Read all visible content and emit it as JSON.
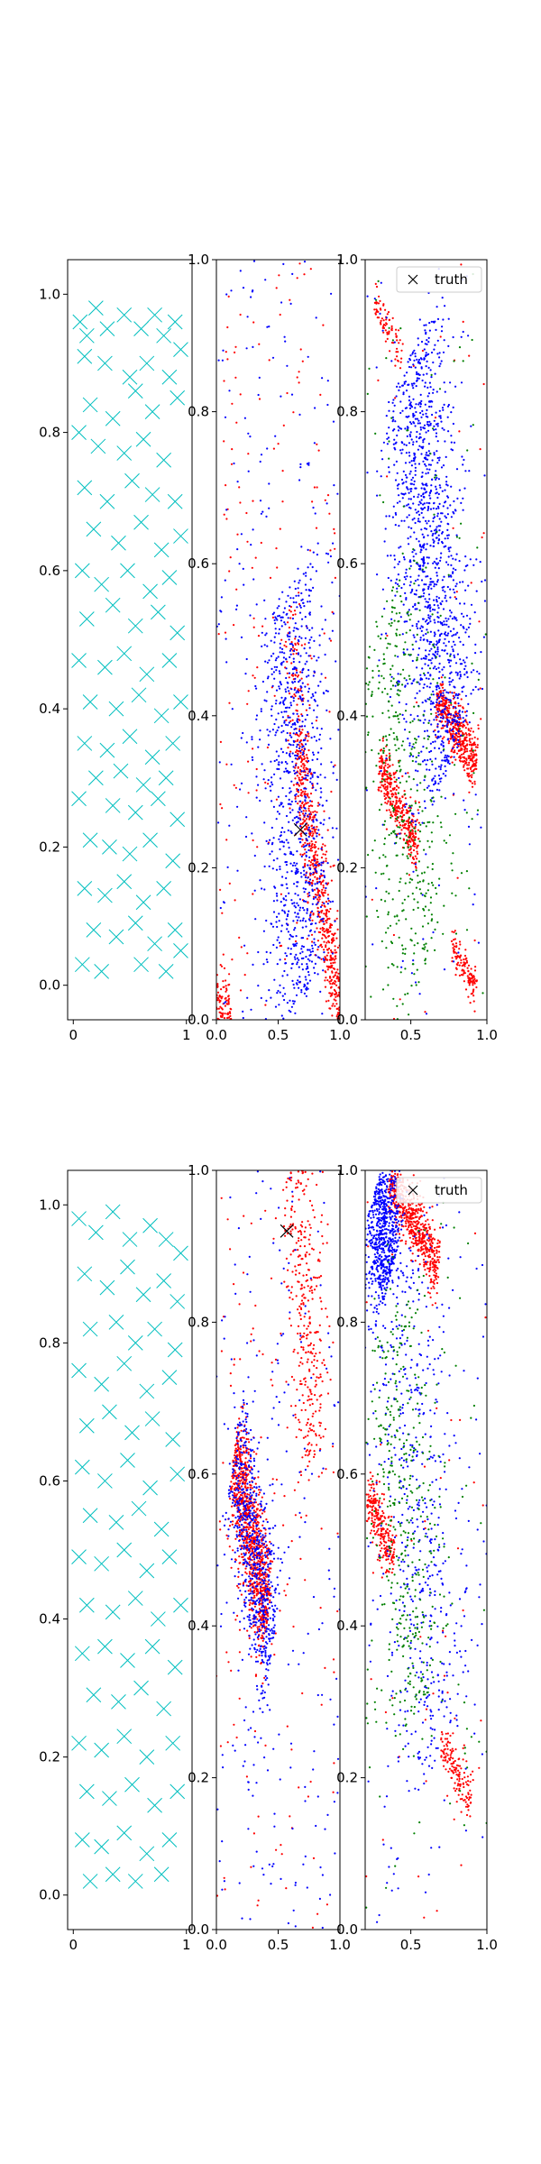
{
  "colors": {
    "scatter_marker": "#00bfbf",
    "series_red": "#ff0000",
    "series_blue": "#0000ff",
    "series_green": "#008000",
    "truth_marker": "#000000"
  },
  "legend_label": "truth",
  "legend_position": "top-right",
  "chart_data": [
    {
      "type": "scatter",
      "panel": "row1-col1",
      "marker": "x",
      "xlim": [
        -0.05,
        1.05
      ],
      "ylim": [
        -0.05,
        1.05
      ],
      "xticks": [
        "0",
        "1"
      ],
      "yticks": [
        "0.0",
        "0.2",
        "0.4",
        "0.6",
        "0.8",
        "1.0"
      ],
      "points": [
        [
          0.06,
          0.96
        ],
        [
          0.12,
          0.94
        ],
        [
          0.2,
          0.98
        ],
        [
          0.3,
          0.95
        ],
        [
          0.45,
          0.97
        ],
        [
          0.6,
          0.95
        ],
        [
          0.72,
          0.97
        ],
        [
          0.8,
          0.94
        ],
        [
          0.9,
          0.96
        ],
        [
          0.95,
          0.92
        ],
        [
          0.1,
          0.91
        ],
        [
          0.28,
          0.9
        ],
        [
          0.5,
          0.88
        ],
        [
          0.65,
          0.9
        ],
        [
          0.85,
          0.88
        ],
        [
          0.15,
          0.84
        ],
        [
          0.35,
          0.82
        ],
        [
          0.55,
          0.86
        ],
        [
          0.7,
          0.83
        ],
        [
          0.92,
          0.85
        ],
        [
          0.05,
          0.8
        ],
        [
          0.22,
          0.78
        ],
        [
          0.45,
          0.77
        ],
        [
          0.62,
          0.79
        ],
        [
          0.8,
          0.76
        ],
        [
          0.1,
          0.72
        ],
        [
          0.3,
          0.7
        ],
        [
          0.52,
          0.73
        ],
        [
          0.7,
          0.71
        ],
        [
          0.9,
          0.7
        ],
        [
          0.18,
          0.66
        ],
        [
          0.4,
          0.64
        ],
        [
          0.6,
          0.67
        ],
        [
          0.78,
          0.63
        ],
        [
          0.95,
          0.65
        ],
        [
          0.08,
          0.6
        ],
        [
          0.25,
          0.58
        ],
        [
          0.48,
          0.6
        ],
        [
          0.68,
          0.57
        ],
        [
          0.85,
          0.59
        ],
        [
          0.12,
          0.53
        ],
        [
          0.35,
          0.55
        ],
        [
          0.55,
          0.52
        ],
        [
          0.75,
          0.54
        ],
        [
          0.92,
          0.51
        ],
        [
          0.05,
          0.47
        ],
        [
          0.28,
          0.46
        ],
        [
          0.45,
          0.48
        ],
        [
          0.65,
          0.45
        ],
        [
          0.85,
          0.47
        ],
        [
          0.15,
          0.41
        ],
        [
          0.38,
          0.4
        ],
        [
          0.58,
          0.42
        ],
        [
          0.78,
          0.39
        ],
        [
          0.95,
          0.41
        ],
        [
          0.1,
          0.35
        ],
        [
          0.3,
          0.34
        ],
        [
          0.5,
          0.36
        ],
        [
          0.7,
          0.33
        ],
        [
          0.88,
          0.35
        ],
        [
          0.2,
          0.3
        ],
        [
          0.42,
          0.31
        ],
        [
          0.62,
          0.29
        ],
        [
          0.82,
          0.3
        ],
        [
          0.05,
          0.27
        ],
        [
          0.35,
          0.26
        ],
        [
          0.55,
          0.25
        ],
        [
          0.75,
          0.27
        ],
        [
          0.92,
          0.24
        ],
        [
          0.15,
          0.21
        ],
        [
          0.32,
          0.2
        ],
        [
          0.5,
          0.19
        ],
        [
          0.68,
          0.21
        ],
        [
          0.88,
          0.18
        ],
        [
          0.1,
          0.14
        ],
        [
          0.28,
          0.13
        ],
        [
          0.45,
          0.15
        ],
        [
          0.62,
          0.12
        ],
        [
          0.8,
          0.14
        ],
        [
          0.18,
          0.08
        ],
        [
          0.38,
          0.07
        ],
        [
          0.55,
          0.09
        ],
        [
          0.72,
          0.06
        ],
        [
          0.9,
          0.08
        ],
        [
          0.08,
          0.03
        ],
        [
          0.25,
          0.02
        ],
        [
          0.6,
          0.03
        ],
        [
          0.82,
          0.02
        ],
        [
          0.95,
          0.05
        ]
      ]
    },
    {
      "type": "scatter",
      "panel": "row1-col2",
      "marker": "dot",
      "xlim": [
        0.0,
        1.0
      ],
      "ylim": [
        0.0,
        1.0
      ],
      "xticks": [
        "0.0",
        "0.5",
        "1.0"
      ],
      "yticks": [
        "0.0",
        "0.2",
        "0.4",
        "0.6",
        "0.8",
        "1.0"
      ],
      "series": [
        {
          "color_key": "series_red",
          "clusters": [
            {
              "cx": 0.85,
              "cy": 0.16,
              "dx": 0.55,
              "dy": -0.55,
              "len": 0.55,
              "width": 0.035,
              "n": 700
            },
            {
              "cx": 0.65,
              "cy": 0.43,
              "dx": 0.3,
              "dy": -0.5,
              "len": 0.25,
              "width": 0.04,
              "n": 120
            },
            {
              "cx": 0.06,
              "cy": 0.01,
              "dx": 1,
              "dy": 0,
              "len": 0.12,
              "width": 0.02,
              "n": 120
            },
            {
              "cx": 0.5,
              "cy": 0.5,
              "dx": 1,
              "dy": 0,
              "len": 1.0,
              "width": 0.6,
              "n": 280
            }
          ]
        },
        {
          "color_key": "series_blue",
          "clusters": [
            {
              "cx": 0.65,
              "cy": 0.3,
              "dx": 0.2,
              "dy": -1,
              "len": 0.55,
              "width": 0.13,
              "n": 900
            },
            {
              "cx": 0.5,
              "cy": 0.55,
              "dx": 1,
              "dy": 0,
              "len": 1.0,
              "width": 0.6,
              "n": 350
            }
          ]
        }
      ],
      "truth": [
        0.68,
        0.25
      ]
    },
    {
      "type": "scatter",
      "panel": "row1-col3",
      "marker": "dot",
      "xlim": [
        0.2,
        1.0
      ],
      "ylim": [
        0.0,
        1.0
      ],
      "xticks": [
        "0.5",
        "1.0"
      ],
      "yticks": [
        "0.0",
        "0.2",
        "0.4",
        "0.6",
        "0.8",
        "1.0"
      ],
      "legend": "truth",
      "series": [
        {
          "color_key": "series_red",
          "clusters": [
            {
              "cx": 0.8,
              "cy": 0.38,
              "dx": 0.8,
              "dy": -0.25,
              "len": 0.28,
              "width": 0.018,
              "n": 450
            },
            {
              "cx": 0.42,
              "cy": 0.28,
              "dx": 0.7,
              "dy": -0.3,
              "len": 0.28,
              "width": 0.018,
              "n": 380
            },
            {
              "cx": 0.85,
              "cy": 0.07,
              "dx": 0.8,
              "dy": -0.3,
              "len": 0.18,
              "width": 0.012,
              "n": 120
            },
            {
              "cx": 0.35,
              "cy": 0.91,
              "dx": 0.8,
              "dy": -0.3,
              "len": 0.2,
              "width": 0.012,
              "n": 80
            },
            {
              "cx": 0.6,
              "cy": 0.5,
              "dx": 1,
              "dy": 0,
              "len": 0.8,
              "width": 0.6,
              "n": 70
            }
          ]
        },
        {
          "color_key": "series_blue",
          "clusters": [
            {
              "cx": 0.62,
              "cy": 0.6,
              "dx": 0.45,
              "dy": -1,
              "len": 0.6,
              "width": 0.11,
              "n": 1300
            },
            {
              "cx": 0.6,
              "cy": 0.5,
              "dx": 1,
              "dy": 0,
              "len": 0.8,
              "width": 0.6,
              "n": 250
            }
          ]
        },
        {
          "color_key": "series_green",
          "clusters": [
            {
              "cx": 0.45,
              "cy": 0.3,
              "dx": 0.4,
              "dy": -1,
              "len": 0.55,
              "width": 0.13,
              "n": 450
            },
            {
              "cx": 0.6,
              "cy": 0.5,
              "dx": 1,
              "dy": 0,
              "len": 0.8,
              "width": 0.6,
              "n": 150
            }
          ]
        }
      ]
    },
    {
      "type": "scatter",
      "panel": "row2-col1",
      "marker": "x",
      "xlim": [
        -0.05,
        1.05
      ],
      "ylim": [
        -0.05,
        1.05
      ],
      "xticks": [
        "0",
        "1"
      ],
      "yticks": [
        "0.0",
        "0.2",
        "0.4",
        "0.6",
        "0.8",
        "1.0"
      ],
      "points": [
        [
          0.05,
          0.98
        ],
        [
          0.2,
          0.96
        ],
        [
          0.35,
          0.99
        ],
        [
          0.5,
          0.95
        ],
        [
          0.68,
          0.97
        ],
        [
          0.82,
          0.95
        ],
        [
          0.95,
          0.93
        ],
        [
          0.1,
          0.9
        ],
        [
          0.3,
          0.88
        ],
        [
          0.48,
          0.91
        ],
        [
          0.62,
          0.87
        ],
        [
          0.8,
          0.89
        ],
        [
          0.92,
          0.86
        ],
        [
          0.15,
          0.82
        ],
        [
          0.38,
          0.83
        ],
        [
          0.55,
          0.8
        ],
        [
          0.72,
          0.82
        ],
        [
          0.9,
          0.79
        ],
        [
          0.05,
          0.76
        ],
        [
          0.25,
          0.74
        ],
        [
          0.45,
          0.77
        ],
        [
          0.65,
          0.73
        ],
        [
          0.85,
          0.75
        ],
        [
          0.12,
          0.68
        ],
        [
          0.32,
          0.7
        ],
        [
          0.52,
          0.67
        ],
        [
          0.7,
          0.69
        ],
        [
          0.88,
          0.66
        ],
        [
          0.08,
          0.62
        ],
        [
          0.28,
          0.6
        ],
        [
          0.48,
          0.63
        ],
        [
          0.68,
          0.59
        ],
        [
          0.92,
          0.61
        ],
        [
          0.15,
          0.55
        ],
        [
          0.38,
          0.54
        ],
        [
          0.58,
          0.56
        ],
        [
          0.78,
          0.53
        ],
        [
          0.05,
          0.49
        ],
        [
          0.25,
          0.48
        ],
        [
          0.45,
          0.5
        ],
        [
          0.65,
          0.47
        ],
        [
          0.85,
          0.49
        ],
        [
          0.12,
          0.42
        ],
        [
          0.35,
          0.41
        ],
        [
          0.55,
          0.43
        ],
        [
          0.75,
          0.4
        ],
        [
          0.95,
          0.42
        ],
        [
          0.08,
          0.35
        ],
        [
          0.28,
          0.36
        ],
        [
          0.48,
          0.34
        ],
        [
          0.7,
          0.36
        ],
        [
          0.9,
          0.33
        ],
        [
          0.18,
          0.29
        ],
        [
          0.4,
          0.28
        ],
        [
          0.6,
          0.3
        ],
        [
          0.8,
          0.27
        ],
        [
          0.05,
          0.22
        ],
        [
          0.25,
          0.21
        ],
        [
          0.45,
          0.23
        ],
        [
          0.65,
          0.2
        ],
        [
          0.88,
          0.22
        ],
        [
          0.12,
          0.15
        ],
        [
          0.32,
          0.14
        ],
        [
          0.52,
          0.16
        ],
        [
          0.72,
          0.13
        ],
        [
          0.92,
          0.15
        ],
        [
          0.08,
          0.08
        ],
        [
          0.25,
          0.07
        ],
        [
          0.45,
          0.09
        ],
        [
          0.65,
          0.06
        ],
        [
          0.85,
          0.08
        ],
        [
          0.15,
          0.02
        ],
        [
          0.35,
          0.03
        ],
        [
          0.55,
          0.02
        ],
        [
          0.78,
          0.03
        ]
      ]
    },
    {
      "type": "scatter",
      "panel": "row2-col2",
      "marker": "dot",
      "xlim": [
        0.0,
        1.0
      ],
      "ylim": [
        0.0,
        1.0
      ],
      "xticks": [
        "0.0",
        "0.5",
        "1.0"
      ],
      "yticks": [
        "0.0",
        "0.2",
        "0.4",
        "0.6",
        "0.8",
        "1.0"
      ],
      "series": [
        {
          "color_key": "series_red",
          "clusters": [
            {
              "cx": 0.28,
              "cy": 0.52,
              "dx": 0.55,
              "dy": -0.45,
              "len": 0.35,
              "width": 0.04,
              "n": 950
            },
            {
              "cx": 0.72,
              "cy": 0.82,
              "dx": 0.35,
              "dy": -1,
              "len": 0.42,
              "width": 0.07,
              "n": 350
            },
            {
              "cx": 0.5,
              "cy": 0.5,
              "dx": 1,
              "dy": 0,
              "len": 1.0,
              "width": 0.6,
              "n": 250
            }
          ]
        },
        {
          "color_key": "series_blue",
          "clusters": [
            {
              "cx": 0.3,
              "cy": 0.5,
              "dx": 0.5,
              "dy": -0.45,
              "len": 0.4,
              "width": 0.06,
              "n": 650
            },
            {
              "cx": 0.5,
              "cy": 0.5,
              "dx": 1,
              "dy": 0,
              "len": 1.0,
              "width": 0.6,
              "n": 350
            }
          ]
        }
      ],
      "truth": [
        0.57,
        0.92
      ]
    },
    {
      "type": "scatter",
      "panel": "row2-col3",
      "marker": "dot",
      "xlim": [
        0.2,
        1.0
      ],
      "ylim": [
        0.0,
        1.0
      ],
      "xticks": [
        "0.5",
        "1.0"
      ],
      "yticks": [
        "0.0",
        "0.2",
        "0.4",
        "0.6",
        "0.8",
        "1.0"
      ],
      "legend": "truth",
      "series": [
        {
          "color_key": "series_red",
          "clusters": [
            {
              "cx": 0.52,
              "cy": 0.93,
              "dx": 0.8,
              "dy": -0.3,
              "len": 0.35,
              "width": 0.02,
              "n": 600
            },
            {
              "cx": 0.3,
              "cy": 0.53,
              "dx": 0.8,
              "dy": -0.4,
              "len": 0.2,
              "width": 0.018,
              "n": 250
            },
            {
              "cx": 0.8,
              "cy": 0.21,
              "dx": 0.8,
              "dy": -0.3,
              "len": 0.22,
              "width": 0.015,
              "n": 150
            },
            {
              "cx": 0.6,
              "cy": 0.5,
              "dx": 1,
              "dy": 0,
              "len": 0.8,
              "width": 0.6,
              "n": 80
            }
          ]
        },
        {
          "color_key": "series_blue",
          "clusters": [
            {
              "cx": 0.32,
              "cy": 0.92,
              "dx": 0.5,
              "dy": -0.7,
              "len": 0.15,
              "width": 0.06,
              "n": 700
            },
            {
              "cx": 0.55,
              "cy": 0.55,
              "dx": 0.4,
              "dy": -1,
              "len": 0.7,
              "width": 0.14,
              "n": 500
            },
            {
              "cx": 0.6,
              "cy": 0.5,
              "dx": 1,
              "dy": 0,
              "len": 0.8,
              "width": 0.6,
              "n": 200
            }
          ]
        },
        {
          "color_key": "series_green",
          "clusters": [
            {
              "cx": 0.45,
              "cy": 0.55,
              "dx": 0.3,
              "dy": -1,
              "len": 0.55,
              "width": 0.12,
              "n": 400
            },
            {
              "cx": 0.6,
              "cy": 0.5,
              "dx": 1,
              "dy": 0,
              "len": 0.8,
              "width": 0.6,
              "n": 150
            }
          ]
        }
      ]
    }
  ]
}
